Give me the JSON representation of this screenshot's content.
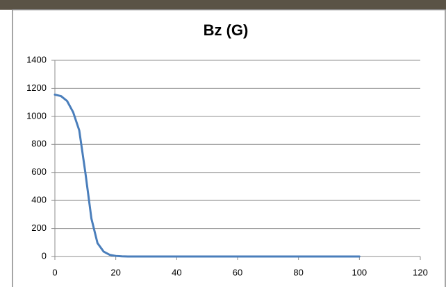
{
  "chart_data": {
    "type": "line",
    "title": "Bz (G)",
    "x": [
      0,
      2,
      4,
      6,
      8,
      10,
      12,
      14,
      16,
      18,
      20,
      22,
      24,
      26,
      28,
      30,
      40,
      50,
      60,
      70,
      80,
      90,
      100
    ],
    "series": [
      {
        "color": "#4a7ebb",
        "values": [
          1155,
          1145,
          1110,
          1030,
          900,
          600,
          270,
          95,
          35,
          12,
          4,
          1,
          0,
          0,
          0,
          0,
          0,
          0,
          0,
          0,
          0,
          0,
          0
        ]
      }
    ],
    "xlim": [
      0,
      120
    ],
    "xticks": [
      0,
      20,
      40,
      60,
      80,
      100,
      120
    ],
    "ylim": [
      0,
      1400
    ],
    "yticks": [
      0,
      200,
      400,
      600,
      800,
      1000,
      1200,
      1400
    ],
    "grid": true
  }
}
